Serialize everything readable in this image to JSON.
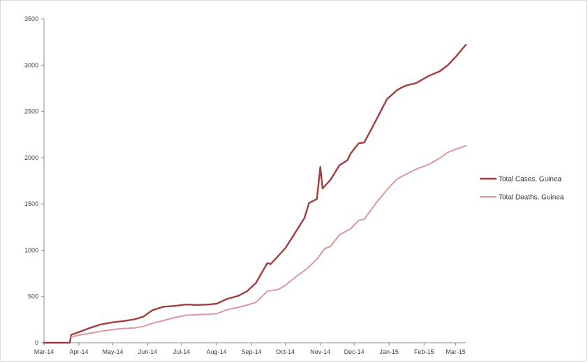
{
  "chart_data": {
    "type": "line",
    "title": "",
    "xlabel": "",
    "ylabel": "",
    "ylim": [
      0,
      3500
    ],
    "yticks": [
      0,
      500,
      1000,
      1500,
      2000,
      2500,
      3000,
      3500
    ],
    "xlim": [
      "2014-03-01",
      "2015-03-10"
    ],
    "xticks": [
      {
        "date": "2014-03-01",
        "label": "Mar-14"
      },
      {
        "date": "2014-04-01",
        "label": "Apr-14"
      },
      {
        "date": "2014-05-01",
        "label": "May-14"
      },
      {
        "date": "2014-06-01",
        "label": "Jun-14"
      },
      {
        "date": "2014-07-01",
        "label": "Jul-14"
      },
      {
        "date": "2014-08-01",
        "label": "Aug-14"
      },
      {
        "date": "2014-09-01",
        "label": "Sep-14"
      },
      {
        "date": "2014-10-01",
        "label": "Oct-14"
      },
      {
        "date": "2014-11-01",
        "label": "Nov-14"
      },
      {
        "date": "2014-12-01",
        "label": "Dec-14"
      },
      {
        "date": "2015-01-01",
        "label": "Jan-15"
      },
      {
        "date": "2015-02-01",
        "label": "Feb-15"
      },
      {
        "date": "2015-03-01",
        "label": "Mar-15"
      }
    ],
    "grid": false,
    "legend": "right",
    "series": [
      {
        "name": "Total Cases, Guinea",
        "color": "#a33d3d",
        "points": [
          [
            "2014-03-01",
            0
          ],
          [
            "2014-03-24",
            0
          ],
          [
            "2014-03-25",
            86
          ],
          [
            "2014-03-31",
            112
          ],
          [
            "2014-04-10",
            157
          ],
          [
            "2014-04-20",
            197
          ],
          [
            "2014-05-01",
            221
          ],
          [
            "2014-05-10",
            233
          ],
          [
            "2014-05-20",
            253
          ],
          [
            "2014-05-28",
            281
          ],
          [
            "2014-06-05",
            351
          ],
          [
            "2014-06-15",
            390
          ],
          [
            "2014-06-25",
            398
          ],
          [
            "2014-07-05",
            413
          ],
          [
            "2014-07-15",
            409
          ],
          [
            "2014-07-25",
            413
          ],
          [
            "2014-08-01",
            422
          ],
          [
            "2014-08-10",
            472
          ],
          [
            "2014-08-20",
            506
          ],
          [
            "2014-08-28",
            557
          ],
          [
            "2014-09-05",
            648
          ],
          [
            "2014-09-15",
            861
          ],
          [
            "2014-09-18",
            850
          ],
          [
            "2014-09-25",
            942
          ],
          [
            "2014-10-01",
            1022
          ],
          [
            "2014-10-10",
            1193
          ],
          [
            "2014-10-18",
            1350
          ],
          [
            "2014-10-22",
            1510
          ],
          [
            "2014-10-29",
            1553
          ],
          [
            "2014-11-01",
            1900
          ],
          [
            "2014-11-03",
            1667
          ],
          [
            "2014-11-10",
            1760
          ],
          [
            "2014-11-18",
            1919
          ],
          [
            "2014-11-25",
            1971
          ],
          [
            "2014-11-28",
            2047
          ],
          [
            "2014-12-05",
            2155
          ],
          [
            "2014-12-10",
            2164
          ],
          [
            "2014-12-20",
            2394
          ],
          [
            "2014-12-30",
            2630
          ],
          [
            "2015-01-08",
            2730
          ],
          [
            "2015-01-15",
            2775
          ],
          [
            "2015-01-25",
            2806
          ],
          [
            "2015-02-05",
            2883
          ],
          [
            "2015-02-15",
            2934
          ],
          [
            "2015-02-22",
            3000
          ],
          [
            "2015-03-01",
            3089
          ],
          [
            "2015-03-10",
            3220
          ]
        ]
      },
      {
        "name": "Total Deaths, Guinea",
        "color": "#d99a9a",
        "points": [
          [
            "2014-03-25",
            60
          ],
          [
            "2014-03-31",
            80
          ],
          [
            "2014-04-10",
            101
          ],
          [
            "2014-04-20",
            122
          ],
          [
            "2014-05-01",
            143
          ],
          [
            "2014-05-10",
            152
          ],
          [
            "2014-05-20",
            160
          ],
          [
            "2014-05-28",
            176
          ],
          [
            "2014-06-05",
            210
          ],
          [
            "2014-06-15",
            241
          ],
          [
            "2014-06-25",
            272
          ],
          [
            "2014-07-05",
            297
          ],
          [
            "2014-07-15",
            304
          ],
          [
            "2014-07-25",
            308
          ],
          [
            "2014-08-01",
            314
          ],
          [
            "2014-08-10",
            356
          ],
          [
            "2014-08-20",
            382
          ],
          [
            "2014-08-28",
            407
          ],
          [
            "2014-09-05",
            437
          ],
          [
            "2014-09-15",
            557
          ],
          [
            "2014-09-25",
            576
          ],
          [
            "2014-10-01",
            621
          ],
          [
            "2014-10-10",
            710
          ],
          [
            "2014-10-20",
            798
          ],
          [
            "2014-10-29",
            904
          ],
          [
            "2014-11-05",
            1018
          ],
          [
            "2014-11-10",
            1041
          ],
          [
            "2014-11-18",
            1166
          ],
          [
            "2014-11-28",
            1233
          ],
          [
            "2014-12-05",
            1322
          ],
          [
            "2014-12-10",
            1334
          ],
          [
            "2014-12-20",
            1504
          ],
          [
            "2014-12-30",
            1652
          ],
          [
            "2015-01-08",
            1768
          ],
          [
            "2015-01-15",
            1814
          ],
          [
            "2015-01-25",
            1876
          ],
          [
            "2015-02-05",
            1926
          ],
          [
            "2015-02-15",
            1995
          ],
          [
            "2015-02-22",
            2057
          ],
          [
            "2015-03-01",
            2091
          ],
          [
            "2015-03-10",
            2129
          ]
        ]
      }
    ]
  }
}
